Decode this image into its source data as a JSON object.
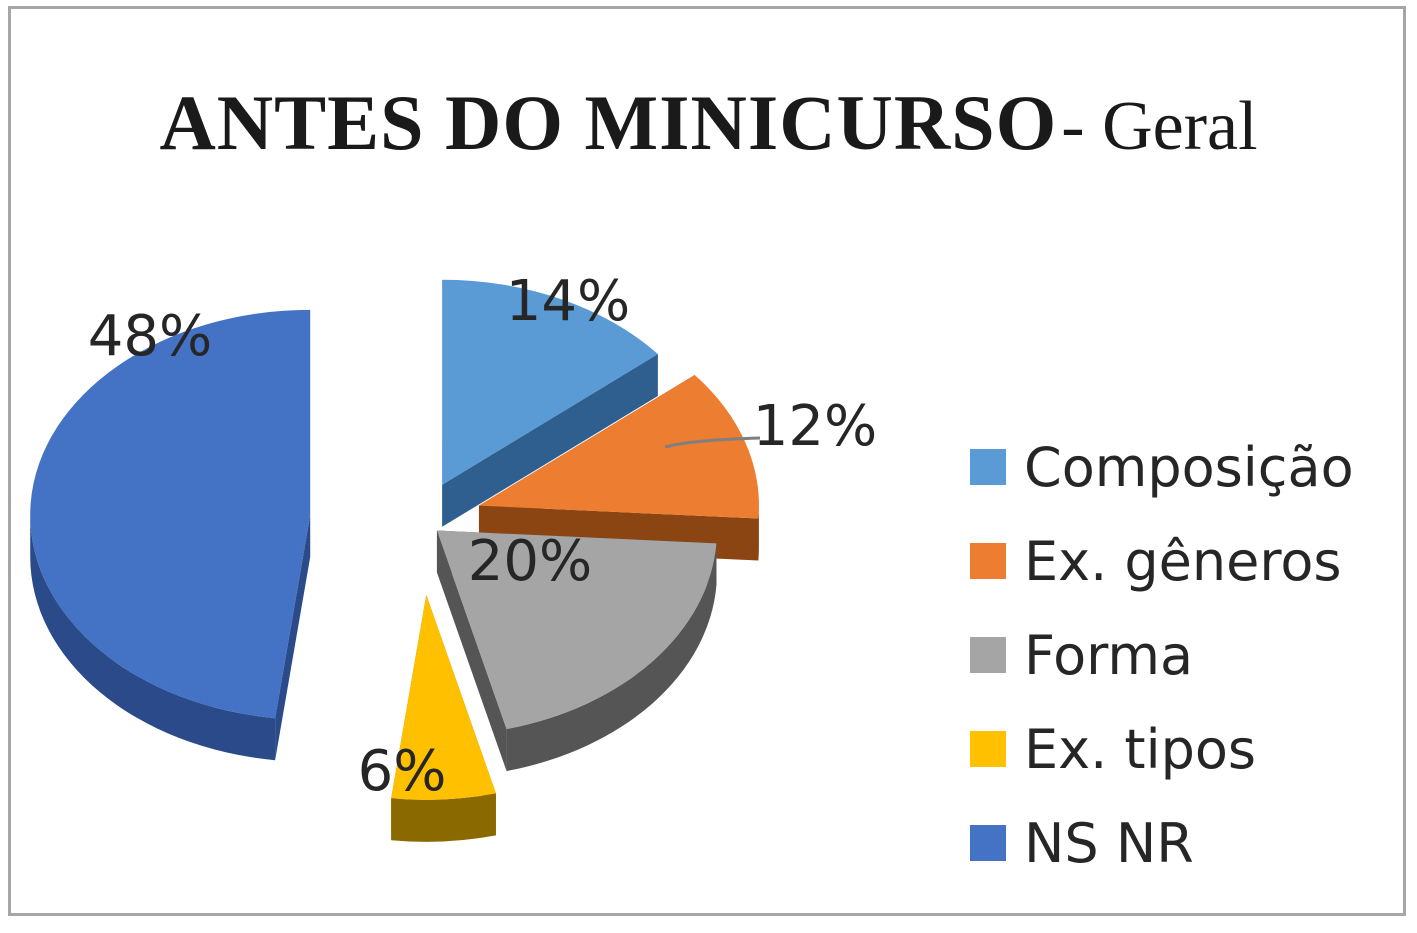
{
  "chart_data": {
    "type": "pie",
    "title": "ANTES DO MINICURSO",
    "subtitle": "- Geral",
    "categories": [
      "Composição",
      "Ex. gêneros",
      "Forma",
      "Ex. tipos",
      "NS NR"
    ],
    "values": [
      14,
      12,
      20,
      6,
      48
    ],
    "labels": [
      "14%",
      "12%",
      "20%",
      "6%",
      "48%"
    ],
    "colors": [
      "#5b9bd5",
      "#ed7d31",
      "#a5a5a5",
      "#ffc000",
      "#4472c4"
    ],
    "side_colors": [
      "#2f5f8e",
      "#8a4512",
      "#555555",
      "#8a6a00",
      "#2a4a8a"
    ],
    "exploded": true,
    "three_d": true,
    "legend_position": "right"
  }
}
